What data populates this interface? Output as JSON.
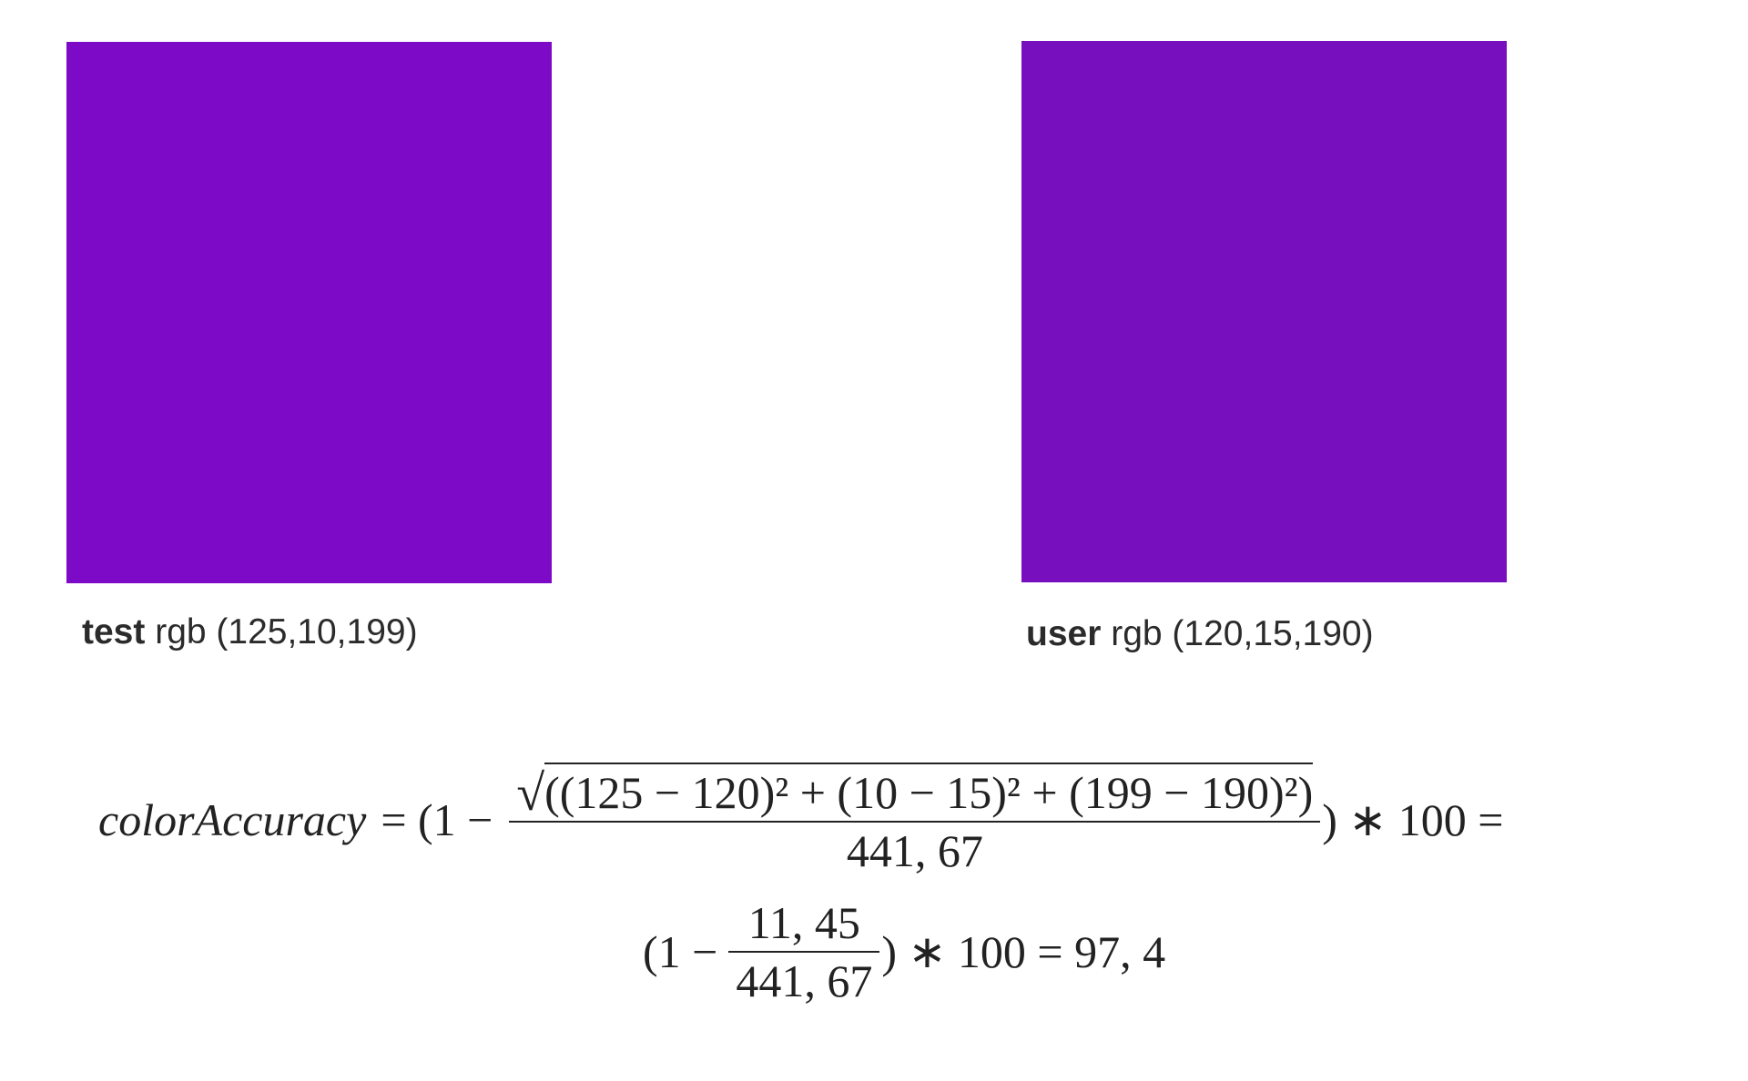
{
  "swatches": [
    {
      "name": "test",
      "value": "rgb (125,10,199)",
      "color": "#7d0ac7"
    },
    {
      "name": "user",
      "value": "rgb (120,15,190)",
      "color": "#780fbe"
    }
  ],
  "formula": {
    "lhs": "colorAccuracy",
    "line1": {
      "open": "= (1 −",
      "numerator": "((125 − 120)² + (10 − 15)² + (199 − 190)²)",
      "denominator": "441, 67",
      "close": ") ∗ 100 ="
    },
    "line2": {
      "open": "(1 −",
      "numerator": "11, 45",
      "denominator": "441, 67",
      "close": ") ∗ 100 = 97, 4"
    }
  }
}
